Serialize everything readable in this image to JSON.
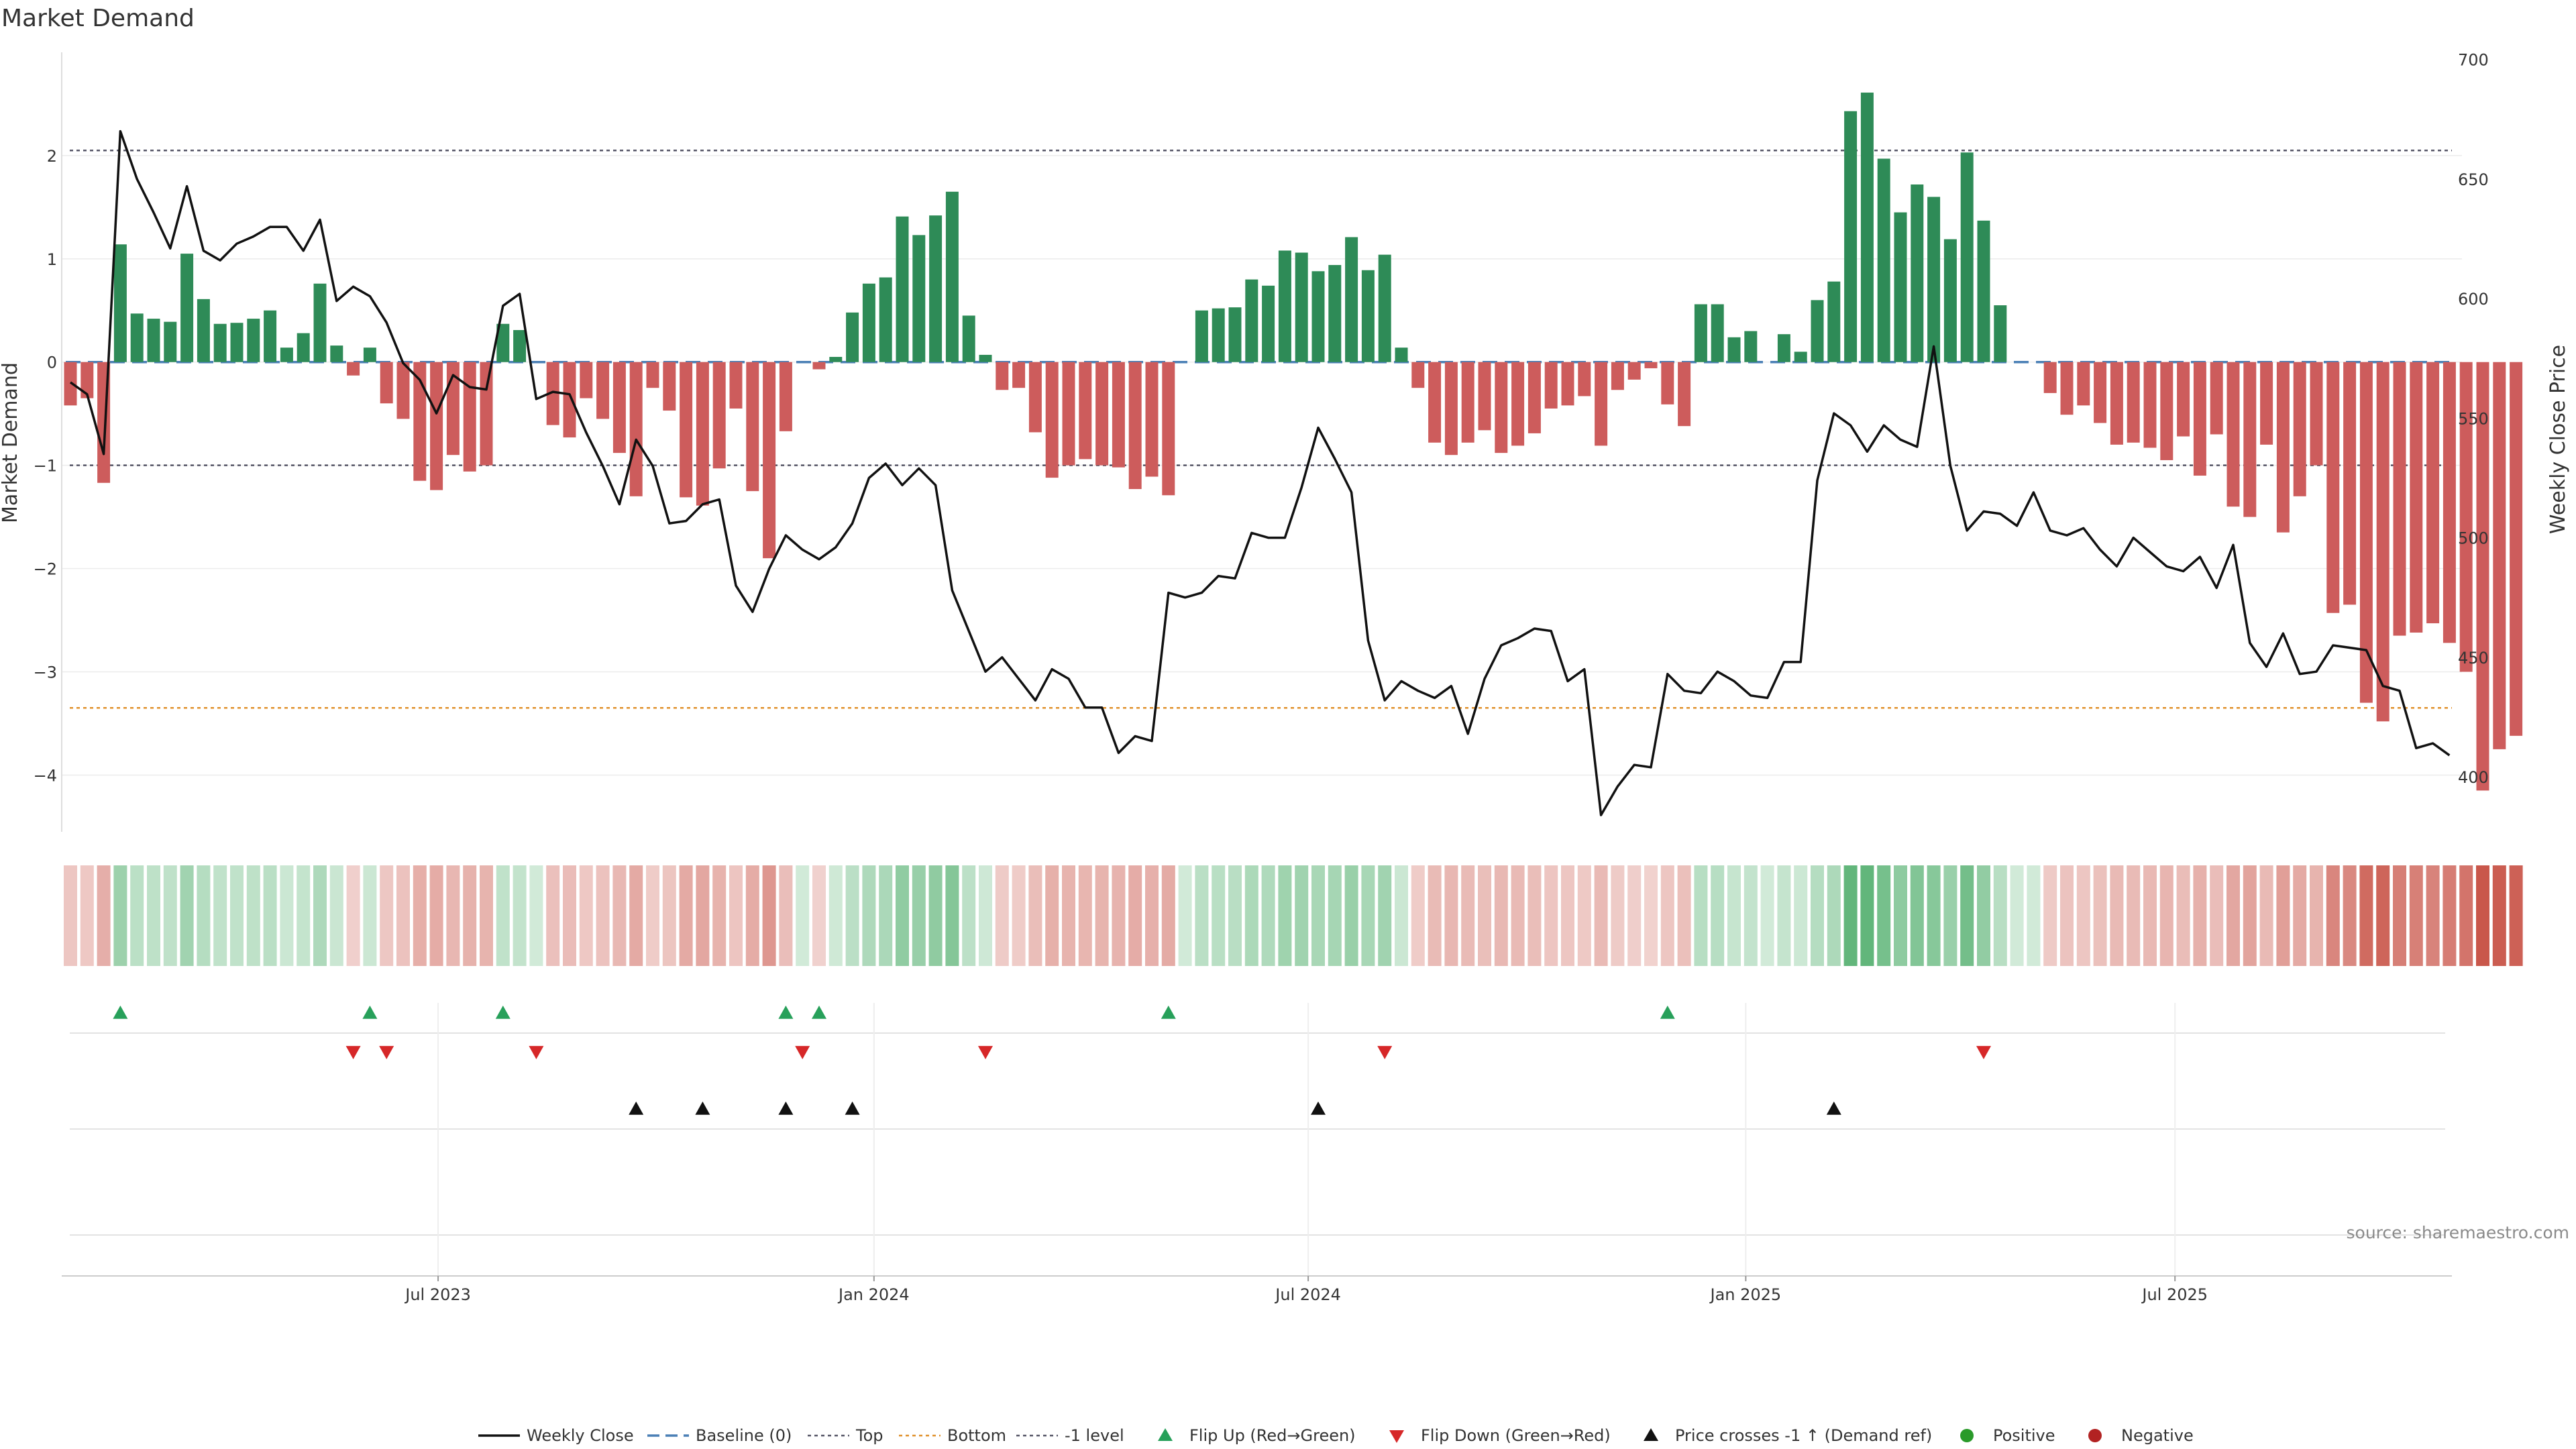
{
  "chart_data": {
    "type": "bar",
    "title": "Market Demand",
    "ylabel": "Market Demand",
    "y2label": "Weekly Close Price",
    "source": "source: sharemaestro.com",
    "ylim": [
      -4.55,
      3.0
    ],
    "y_ticks": [
      2,
      1,
      0,
      -1,
      -2,
      -3,
      -4
    ],
    "y_tick_labels": [
      "2",
      "1",
      "0",
      "−1",
      "−2",
      "−3",
      "−4"
    ],
    "y2lim": [
      377,
      703
    ],
    "y2_ticks": [
      700,
      650,
      600,
      550,
      500,
      450,
      400
    ],
    "y2_tick_labels": [
      "700",
      "650",
      "600",
      "550",
      "500",
      "450",
      "400"
    ],
    "x_range_weeks": [
      0,
      144
    ],
    "x_ticks": [
      {
        "label": "Jul 2023",
        "week": 22.1
      },
      {
        "label": "Jan 2024",
        "week": 48.3
      },
      {
        "label": "Jul 2024",
        "week": 74.4
      },
      {
        "label": "Jan 2025",
        "week": 100.7
      },
      {
        "label": "Jul 2025",
        "week": 126.5
      }
    ],
    "reference_lines": {
      "top": 2.05,
      "bottom": -3.35,
      "minus_one": -1.0,
      "baseline": 0
    },
    "demand": [
      -0.42,
      -0.35,
      -1.17,
      1.14,
      0.47,
      0.42,
      0.39,
      1.05,
      0.61,
      0.37,
      0.38,
      0.42,
      0.5,
      0.14,
      0.28,
      0.76,
      0.16,
      -0.13,
      0.14,
      -0.4,
      -0.55,
      -1.15,
      -1.24,
      -0.9,
      -1.06,
      -1.0,
      0.37,
      0.31,
      0.0,
      -0.61,
      -0.73,
      -0.35,
      -0.55,
      -0.88,
      -1.3,
      -0.25,
      -0.47,
      -1.31,
      -1.39,
      -1.03,
      -0.45,
      -1.25,
      -1.9,
      -0.67,
      0.0,
      -0.07,
      0.05,
      0.48,
      0.76,
      0.82,
      1.41,
      1.23,
      1.42,
      1.65,
      0.45,
      0.07,
      -0.27,
      -0.25,
      -0.68,
      -1.12,
      -1.0,
      -0.94,
      -1.0,
      -1.02,
      -1.23,
      -1.11,
      -1.29,
      0.0,
      0.5,
      0.52,
      0.53,
      0.8,
      0.74,
      1.08,
      1.06,
      0.88,
      0.94,
      1.21,
      0.89,
      1.04,
      0.14,
      -0.25,
      -0.78,
      -0.9,
      -0.78,
      -0.66,
      -0.88,
      -0.81,
      -0.69,
      -0.45,
      -0.42,
      -0.33,
      -0.81,
      -0.27,
      -0.17,
      -0.06,
      -0.41,
      -0.62,
      0.56,
      0.56,
      0.24,
      0.3,
      0.0,
      0.27,
      0.1,
      0.6,
      0.78,
      2.43,
      2.61,
      1.97,
      1.45,
      1.72,
      1.6,
      1.19,
      2.03,
      1.37,
      0.55,
      0.0,
      0.0,
      -0.3,
      -0.51,
      -0.42,
      -0.59,
      -0.8,
      -0.78,
      -0.83,
      -0.95,
      -0.72,
      -1.1,
      -0.7,
      -1.4,
      -1.5,
      -0.8,
      -1.65,
      -1.3,
      -1.0,
      -2.43,
      -2.35,
      -3.3,
      -3.48,
      -2.65,
      -2.62,
      -2.53,
      -2.72,
      -3.0,
      -4.15,
      -3.75,
      -3.62
    ],
    "weekly_close": [
      565,
      560,
      535,
      670,
      650,
      636,
      621,
      647,
      620,
      616,
      623,
      626,
      630,
      630,
      620,
      633,
      599,
      605,
      601,
      590,
      573,
      566,
      552,
      568,
      563,
      562,
      597,
      602,
      558,
      561,
      560,
      544,
      530,
      514,
      541,
      530,
      506,
      507,
      514,
      516,
      480,
      469,
      487,
      501,
      495,
      491,
      496,
      506,
      525,
      531,
      522,
      529,
      522,
      478,
      461,
      444,
      450,
      441,
      432,
      445,
      441,
      429,
      429,
      410,
      417,
      415,
      477,
      475,
      477,
      484,
      483,
      502,
      500,
      500,
      521,
      546,
      533,
      519,
      457,
      432,
      440,
      436,
      433,
      438,
      418,
      441,
      455,
      458,
      462,
      461,
      440,
      445,
      384,
      396,
      405,
      404,
      443,
      436,
      435,
      444,
      440,
      434,
      433,
      448,
      448,
      524,
      552,
      547,
      536,
      547,
      541,
      538,
      580,
      530,
      503,
      511,
      510,
      505,
      519,
      503,
      501,
      504,
      495,
      488,
      500,
      494,
      488,
      486,
      492,
      479,
      497,
      456,
      446,
      460,
      443,
      444,
      455,
      454,
      453,
      438,
      436,
      412,
      414,
      409
    ],
    "flip_up_weeks": [
      3,
      18,
      26,
      43,
      45,
      66,
      96
    ],
    "flip_down_weeks": [
      17,
      19,
      28,
      44,
      55,
      79,
      115
    ],
    "price_cross_weeks": [
      34,
      38,
      43,
      47,
      75,
      106
    ],
    "legend": [
      "Weekly Close",
      "Baseline (0)",
      "Top",
      "Bottom",
      "-1 level",
      "Flip Up (Red→Green)",
      "Flip Down (Green→Red)",
      "Price crosses -1 ↑ (Demand ref)",
      "Positive",
      "Negative"
    ]
  },
  "colors": {
    "positive_bar": "#2e8b57",
    "negative_bar": "#cd5c5c",
    "price_line": "#111111",
    "baseline": "#4a7fb5",
    "top_line": "#555566",
    "bottom_line": "#e0902a",
    "flip_up": "#27a05a",
    "flip_down": "#d62728",
    "cross_marker": "#111111",
    "positive_dot": "#2a9a2a",
    "negative_dot": "#b22222"
  }
}
